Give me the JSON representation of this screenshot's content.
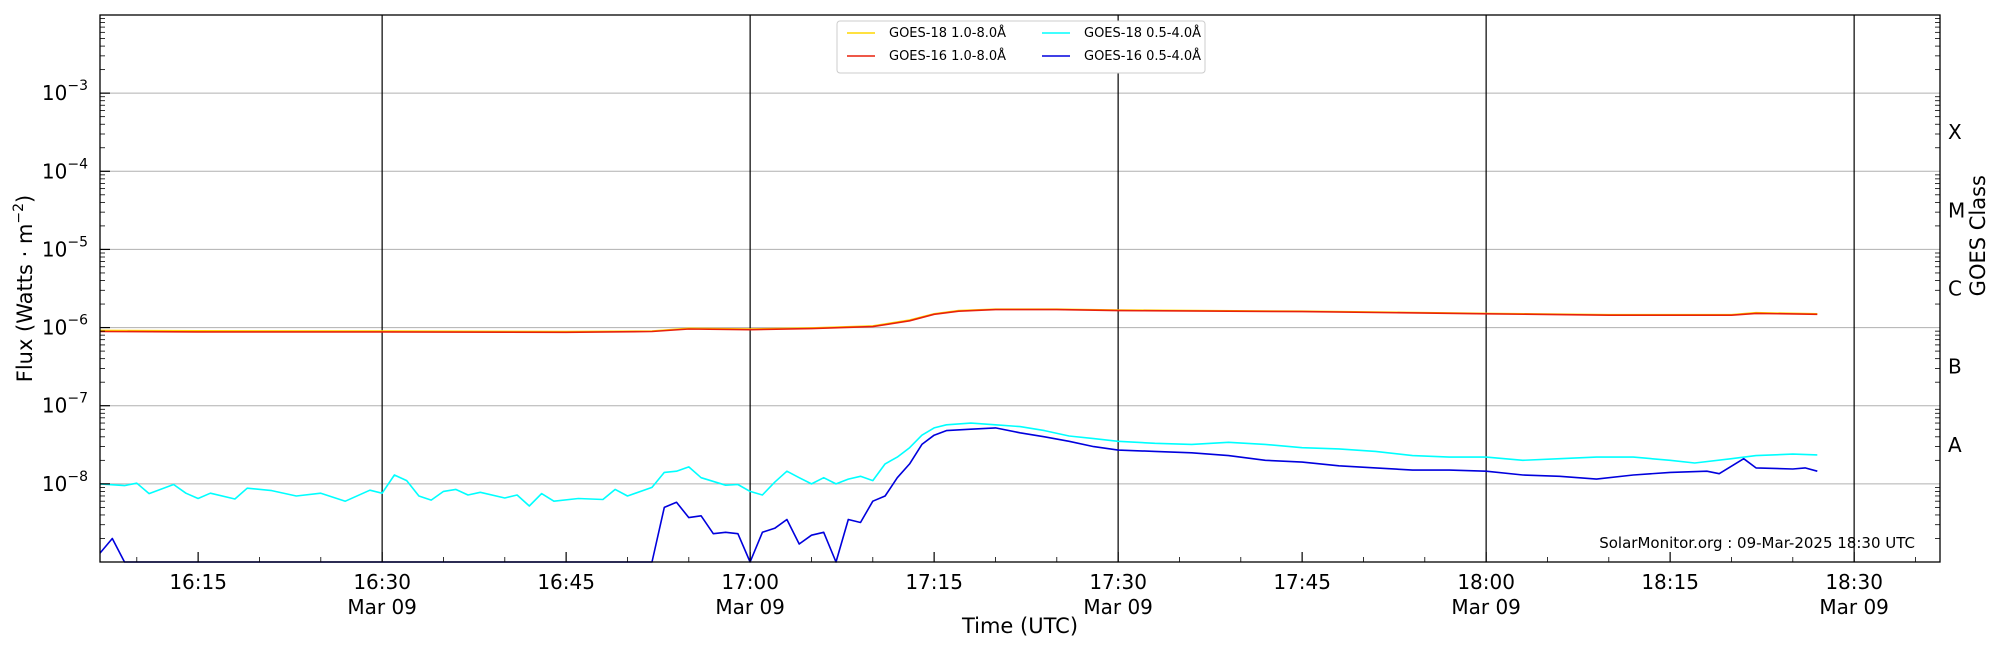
{
  "chart_data": {
    "type": "line",
    "xlabel": "Time (UTC)",
    "ylabel": "Flux (Watts · m",
    "ylabel_unit_power": "−2",
    "y2label": "GOES Class",
    "yscale": "log",
    "ylim": [
      1e-09,
      0.01
    ],
    "xlim": [
      "16:07",
      "18:37"
    ],
    "grid": "horizontal",
    "legend_position": "top-center",
    "annotation": "SolarMonitor.org : 09-Mar-2025 18:30 UTC",
    "x_ticks": [
      {
        "time": "16:15",
        "label": "16:15",
        "sublabel": ""
      },
      {
        "time": "16:30",
        "label": "16:30",
        "sublabel": "Mar 09"
      },
      {
        "time": "16:45",
        "label": "16:45",
        "sublabel": ""
      },
      {
        "time": "17:00",
        "label": "17:00",
        "sublabel": "Mar 09"
      },
      {
        "time": "17:15",
        "label": "17:15",
        "sublabel": ""
      },
      {
        "time": "17:30",
        "label": "17:30",
        "sublabel": "Mar 09"
      },
      {
        "time": "17:45",
        "label": "17:45",
        "sublabel": ""
      },
      {
        "time": "18:00",
        "label": "18:00",
        "sublabel": "Mar 09"
      },
      {
        "time": "18:15",
        "label": "18:15",
        "sublabel": ""
      },
      {
        "time": "18:30",
        "label": "18:30",
        "sublabel": "Mar 09"
      }
    ],
    "vertical_lines": [
      "16:30",
      "17:00",
      "17:30",
      "18:00",
      "18:30"
    ],
    "y_ticks": [
      {
        "value": 1e-08,
        "exp": "−8"
      },
      {
        "value": 1e-07,
        "exp": "−7"
      },
      {
        "value": 1e-06,
        "exp": "−6"
      },
      {
        "value": 1e-05,
        "exp": "−5"
      },
      {
        "value": 0.0001,
        "exp": "−4"
      },
      {
        "value": 0.001,
        "exp": "−3"
      }
    ],
    "goes_classes": [
      {
        "label": "A",
        "value": 3.16e-08
      },
      {
        "label": "B",
        "value": 3.16e-07
      },
      {
        "label": "C",
        "value": 3.16e-06
      },
      {
        "label": "M",
        "value": 3.16e-05
      },
      {
        "label": "X",
        "value": 0.000316
      }
    ],
    "series": [
      {
        "name": "GOES-18 1.0-8.0Å",
        "color": "#ffd700",
        "points": [
          [
            "16:07",
            9.2e-07
          ],
          [
            "16:15",
            9.1e-07
          ],
          [
            "16:30",
            9e-07
          ],
          [
            "16:45",
            8.9e-07
          ],
          [
            "16:52",
            9e-07
          ],
          [
            "16:55",
            9.8e-07
          ],
          [
            "17:00",
            9.6e-07
          ],
          [
            "17:05",
            9.9e-07
          ],
          [
            "17:10",
            1.05e-06
          ],
          [
            "17:13",
            1.25e-06
          ],
          [
            "17:15",
            1.5e-06
          ],
          [
            "17:17",
            1.65e-06
          ],
          [
            "17:20",
            1.72e-06
          ],
          [
            "17:25",
            1.72e-06
          ],
          [
            "17:30",
            1.68e-06
          ],
          [
            "17:45",
            1.62e-06
          ],
          [
            "18:00",
            1.52e-06
          ],
          [
            "18:10",
            1.46e-06
          ],
          [
            "18:20",
            1.46e-06
          ],
          [
            "18:22",
            1.55e-06
          ],
          [
            "18:27",
            1.5e-06
          ]
        ]
      },
      {
        "name": "GOES-16 1.0-8.0Å",
        "color": "#e8200c",
        "points": [
          [
            "16:07",
            8.9e-07
          ],
          [
            "16:15",
            8.8e-07
          ],
          [
            "16:30",
            8.8e-07
          ],
          [
            "16:45",
            8.7e-07
          ],
          [
            "16:52",
            8.9e-07
          ],
          [
            "16:55",
            9.6e-07
          ],
          [
            "17:00",
            9.4e-07
          ],
          [
            "17:05",
            9.7e-07
          ],
          [
            "17:10",
            1.03e-06
          ],
          [
            "17:13",
            1.22e-06
          ],
          [
            "17:15",
            1.48e-06
          ],
          [
            "17:17",
            1.62e-06
          ],
          [
            "17:20",
            1.7e-06
          ],
          [
            "17:25",
            1.7e-06
          ],
          [
            "17:30",
            1.65e-06
          ],
          [
            "17:45",
            1.6e-06
          ],
          [
            "18:00",
            1.5e-06
          ],
          [
            "18:10",
            1.44e-06
          ],
          [
            "18:20",
            1.44e-06
          ],
          [
            "18:22",
            1.52e-06
          ],
          [
            "18:27",
            1.48e-06
          ]
        ]
      },
      {
        "name": "GOES-18 0.5-4.0Å",
        "color": "#00ffff",
        "points": [
          [
            "16:07",
            1e-08
          ],
          [
            "16:09",
            9.5e-09
          ],
          [
            "16:10",
            1.02e-08
          ],
          [
            "16:11",
            7.5e-09
          ],
          [
            "16:13",
            9.8e-09
          ],
          [
            "16:14",
            7.6e-09
          ],
          [
            "16:15",
            6.5e-09
          ],
          [
            "16:16",
            7.6e-09
          ],
          [
            "16:18",
            6.4e-09
          ],
          [
            "16:19",
            8.8e-09
          ],
          [
            "16:21",
            8.2e-09
          ],
          [
            "16:23",
            7e-09
          ],
          [
            "16:25",
            7.6e-09
          ],
          [
            "16:27",
            6e-09
          ],
          [
            "16:29",
            8.3e-09
          ],
          [
            "16:30",
            7.6e-09
          ],
          [
            "16:31",
            1.3e-08
          ],
          [
            "16:32",
            1.1e-08
          ],
          [
            "16:33",
            7e-09
          ],
          [
            "16:34",
            6.2e-09
          ],
          [
            "16:35",
            8e-09
          ],
          [
            "16:36",
            8.5e-09
          ],
          [
            "16:37",
            7.2e-09
          ],
          [
            "16:38",
            7.8e-09
          ],
          [
            "16:40",
            6.6e-09
          ],
          [
            "16:41",
            7.2e-09
          ],
          [
            "16:42",
            5.2e-09
          ],
          [
            "16:43",
            7.5e-09
          ],
          [
            "16:44",
            6e-09
          ],
          [
            "16:46",
            6.5e-09
          ],
          [
            "16:48",
            6.3e-09
          ],
          [
            "16:49",
            8.5e-09
          ],
          [
            "16:50",
            7e-09
          ],
          [
            "16:52",
            9e-09
          ],
          [
            "16:53",
            1.4e-08
          ],
          [
            "16:54",
            1.45e-08
          ],
          [
            "16:55",
            1.65e-08
          ],
          [
            "16:56",
            1.2e-08
          ],
          [
            "16:58",
            9.6e-09
          ],
          [
            "16:59",
            9.8e-09
          ],
          [
            "17:00",
            8e-09
          ],
          [
            "17:01",
            7.2e-09
          ],
          [
            "17:02",
            1.05e-08
          ],
          [
            "17:03",
            1.45e-08
          ],
          [
            "17:04",
            1.2e-08
          ],
          [
            "17:05",
            1e-08
          ],
          [
            "17:06",
            1.2e-08
          ],
          [
            "17:07",
            1e-08
          ],
          [
            "17:08",
            1.15e-08
          ],
          [
            "17:09",
            1.25e-08
          ],
          [
            "17:10",
            1.1e-08
          ],
          [
            "17:11",
            1.8e-08
          ],
          [
            "17:12",
            2.2e-08
          ],
          [
            "17:13",
            2.9e-08
          ],
          [
            "17:14",
            4.2e-08
          ],
          [
            "17:15",
            5.2e-08
          ],
          [
            "17:16",
            5.7e-08
          ],
          [
            "17:18",
            6e-08
          ],
          [
            "17:20",
            5.7e-08
          ],
          [
            "17:22",
            5.4e-08
          ],
          [
            "17:24",
            4.8e-08
          ],
          [
            "17:26",
            4.1e-08
          ],
          [
            "17:28",
            3.8e-08
          ],
          [
            "17:30",
            3.5e-08
          ],
          [
            "17:33",
            3.3e-08
          ],
          [
            "17:36",
            3.2e-08
          ],
          [
            "17:39",
            3.4e-08
          ],
          [
            "17:42",
            3.2e-08
          ],
          [
            "17:45",
            2.9e-08
          ],
          [
            "17:48",
            2.8e-08
          ],
          [
            "17:51",
            2.6e-08
          ],
          [
            "17:54",
            2.3e-08
          ],
          [
            "17:57",
            2.2e-08
          ],
          [
            "18:00",
            2.2e-08
          ],
          [
            "18:03",
            2e-08
          ],
          [
            "18:06",
            2.1e-08
          ],
          [
            "18:09",
            2.2e-08
          ],
          [
            "18:12",
            2.2e-08
          ],
          [
            "18:15",
            2e-08
          ],
          [
            "18:17",
            1.85e-08
          ],
          [
            "18:20",
            2.1e-08
          ],
          [
            "18:22",
            2.3e-08
          ],
          [
            "18:25",
            2.4e-08
          ],
          [
            "18:27",
            2.35e-08
          ]
        ]
      },
      {
        "name": "GOES-16 0.5-4.0Å",
        "color": "#0000dd",
        "points": [
          [
            "16:07",
            1.3e-09
          ],
          [
            "16:08",
            2e-09
          ],
          [
            "16:09",
            1e-09
          ],
          [
            "16:52",
            1e-09
          ],
          [
            "16:53",
            5e-09
          ],
          [
            "16:54",
            5.8e-09
          ],
          [
            "16:55",
            3.7e-09
          ],
          [
            "16:56",
            3.9e-09
          ],
          [
            "16:57",
            2.3e-09
          ],
          [
            "16:58",
            2.4e-09
          ],
          [
            "16:59",
            2.3e-09
          ],
          [
            "17:00",
            1e-09
          ],
          [
            "17:01",
            2.4e-09
          ],
          [
            "17:02",
            2.7e-09
          ],
          [
            "17:03",
            3.5e-09
          ],
          [
            "17:04",
            1.7e-09
          ],
          [
            "17:05",
            2.2e-09
          ],
          [
            "17:06",
            2.4e-09
          ],
          [
            "17:07",
            1e-09
          ],
          [
            "17:08",
            3.5e-09
          ],
          [
            "17:09",
            3.2e-09
          ],
          [
            "17:10",
            6e-09
          ],
          [
            "17:11",
            7e-09
          ],
          [
            "17:12",
            1.2e-08
          ],
          [
            "17:13",
            1.8e-08
          ],
          [
            "17:14",
            3.2e-08
          ],
          [
            "17:15",
            4.2e-08
          ],
          [
            "17:16",
            4.8e-08
          ],
          [
            "17:18",
            5e-08
          ],
          [
            "17:20",
            5.2e-08
          ],
          [
            "17:22",
            4.5e-08
          ],
          [
            "17:24",
            4e-08
          ],
          [
            "17:26",
            3.5e-08
          ],
          [
            "17:28",
            3e-08
          ],
          [
            "17:30",
            2.7e-08
          ],
          [
            "17:33",
            2.6e-08
          ],
          [
            "17:36",
            2.5e-08
          ],
          [
            "17:39",
            2.3e-08
          ],
          [
            "17:42",
            2e-08
          ],
          [
            "17:45",
            1.9e-08
          ],
          [
            "17:48",
            1.7e-08
          ],
          [
            "17:51",
            1.6e-08
          ],
          [
            "17:54",
            1.5e-08
          ],
          [
            "17:57",
            1.5e-08
          ],
          [
            "18:00",
            1.45e-08
          ],
          [
            "18:03",
            1.3e-08
          ],
          [
            "18:06",
            1.25e-08
          ],
          [
            "18:09",
            1.15e-08
          ],
          [
            "18:12",
            1.3e-08
          ],
          [
            "18:15",
            1.4e-08
          ],
          [
            "18:18",
            1.45e-08
          ],
          [
            "18:19",
            1.35e-08
          ],
          [
            "18:21",
            2.1e-08
          ],
          [
            "18:22",
            1.6e-08
          ],
          [
            "18:25",
            1.55e-08
          ],
          [
            "18:26",
            1.6e-08
          ],
          [
            "18:27",
            1.45e-08
          ]
        ]
      }
    ]
  }
}
